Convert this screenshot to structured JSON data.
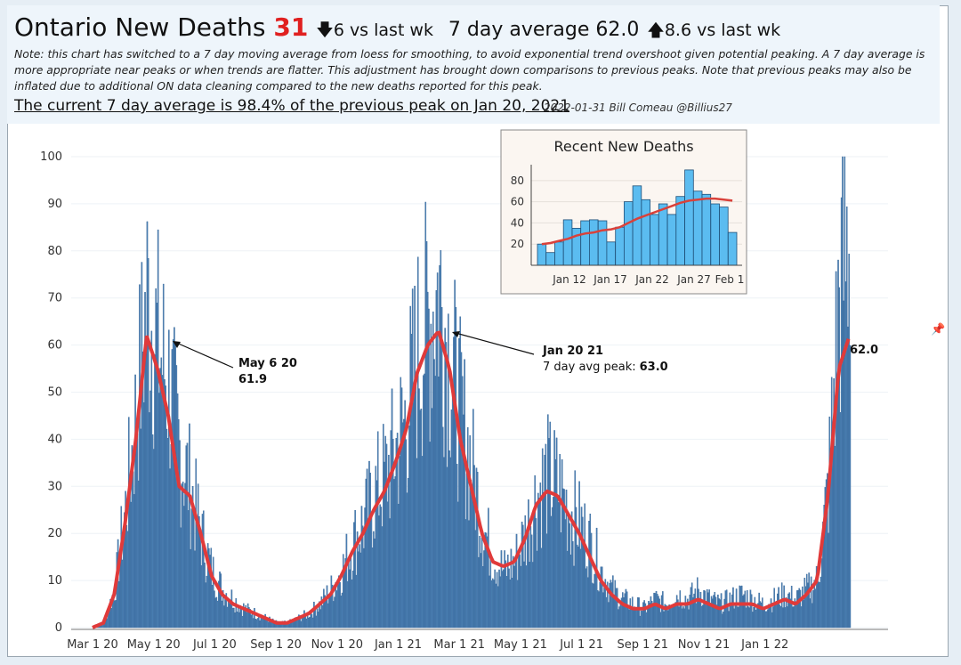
{
  "header": {
    "title_main": "Ontario New Deaths",
    "title_value": "31",
    "title_change": "6 vs last wk",
    "title_avg": "7 day average 62.0",
    "title_avg_change": "8.6 vs last wk",
    "note": "Note: this chart has switched to a 7 day moving average from loess for smoothing, to avoid exponential trend overshoot given potential peaking. A 7 day average is more appropriate near peaks or when trends are flatter. This adjustment has brought down comparisons to previous peaks. Note that previous peaks may also be inflated due to additional ON data cleaning compared to the new deaths reported for this peak.",
    "current": "The current 7 day average is 98.4% of the previous peak on Jan 20, 2021",
    "credit": "2022-01-31 Bill Comeau @Billius27"
  },
  "colors": {
    "bar": "#4e82b5",
    "bar_stroke": "#2e5f93",
    "line": "#e03a3a",
    "inset_bar": "#5bbcf0",
    "arrow_down": "#111",
    "title_red": "#e02020"
  },
  "chart_data": [
    {
      "type": "bar",
      "title": "Ontario New Deaths",
      "ylim": [
        0,
        100
      ],
      "yticks": [
        0,
        10,
        20,
        30,
        40,
        50,
        60,
        70,
        80,
        90,
        100
      ],
      "x_tick_labels": [
        "Mar 1 20",
        "May 1 20",
        "Jul 1 20",
        "Sep 1 20",
        "Nov 1 20",
        "Jan 1 21",
        "Mar 1 21",
        "May 1 21",
        "Jul 1 21",
        "Sep 1 21",
        "Nov 1 21",
        "Jan 1 22"
      ],
      "series": [
        {
          "name": "New Deaths (daily)",
          "kind": "bar",
          "profile_note": "approximate daily values read from chart, sampled ~every 8 days from Mar 1 2020 to Jan 31 2022",
          "values": [
            0,
            1,
            8,
            25,
            45,
            70,
            60,
            52,
            38,
            30,
            20,
            12,
            8,
            6,
            4,
            3,
            2,
            1,
            1,
            2,
            3,
            5,
            8,
            12,
            18,
            22,
            28,
            32,
            38,
            45,
            58,
            65,
            72,
            58,
            45,
            35,
            22,
            15,
            12,
            14,
            20,
            28,
            32,
            30,
            25,
            22,
            18,
            12,
            8,
            6,
            5,
            4,
            6,
            5,
            7,
            6,
            8,
            6,
            5,
            6,
            7,
            6,
            5,
            6,
            7,
            6,
            8,
            10,
            30,
            70,
            85
          ]
        },
        {
          "name": "7 day average",
          "kind": "line",
          "values": [
            0,
            1,
            7,
            22,
            40,
            62,
            55,
            45,
            30,
            28,
            20,
            11,
            7,
            5,
            4,
            3,
            2,
            1,
            1,
            2,
            3,
            5,
            7,
            11,
            16,
            20,
            25,
            29,
            35,
            42,
            54,
            60,
            63,
            55,
            40,
            30,
            20,
            14,
            13,
            14,
            19,
            26,
            29,
            28,
            24,
            20,
            15,
            10,
            7,
            5,
            4,
            4,
            5,
            4,
            5,
            5,
            6,
            5,
            4,
            5,
            5,
            5,
            4,
            5,
            6,
            5,
            7,
            10,
            28,
            55,
            62
          ]
        }
      ],
      "annotations": [
        {
          "label": "May 6 20",
          "value": "61.9"
        },
        {
          "label": "Jan 20 21",
          "text": "7 day avg peak:",
          "value": "63.0"
        },
        {
          "label": "62.0"
        }
      ]
    },
    {
      "type": "bar",
      "title": "Recent New Deaths",
      "ylim": [
        0,
        95
      ],
      "yticks": [
        20,
        40,
        60,
        80
      ],
      "x_tick_labels": [
        "Jan 12",
        "Jan 17",
        "Jan 22",
        "Jan 27",
        "Feb 1"
      ],
      "series": [
        {
          "name": "New Deaths",
          "kind": "bar",
          "values": [
            20,
            12,
            22,
            43,
            35,
            42,
            43,
            42,
            22,
            36,
            60,
            75,
            62,
            48,
            58,
            48,
            65,
            90,
            70,
            67,
            58,
            55,
            31
          ]
        },
        {
          "name": "7 day average",
          "kind": "line",
          "values": [
            20,
            21,
            23,
            25,
            28,
            30,
            31,
            33,
            34,
            36,
            40,
            44,
            47,
            50,
            53,
            56,
            59,
            61,
            62,
            63,
            63,
            62,
            61
          ]
        }
      ]
    }
  ]
}
